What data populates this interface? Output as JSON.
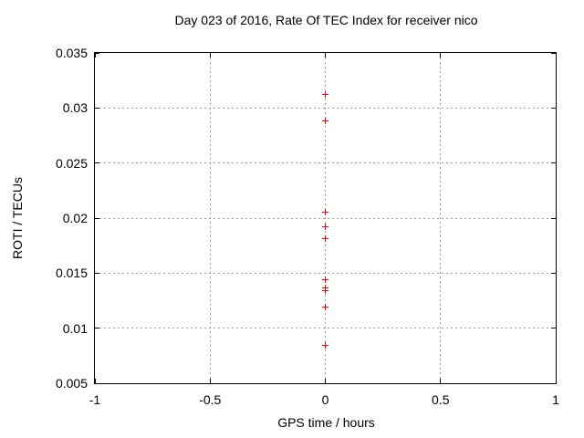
{
  "chart_data": {
    "type": "scatter",
    "title": "Day 023 of 2016, Rate Of TEC Index for receiver nico",
    "xlabel": "GPS time / hours",
    "ylabel": "ROTI / TECUs",
    "xlim": [
      -1,
      1
    ],
    "ylim": [
      0.005,
      0.035
    ],
    "x_ticks": [
      -1,
      -0.5,
      0,
      0.5,
      1
    ],
    "x_tick_labels": [
      "-1",
      "-0.5",
      "0",
      "0.5",
      "1"
    ],
    "y_ticks": [
      0.005,
      0.01,
      0.015,
      0.02,
      0.025,
      0.03,
      0.035
    ],
    "y_tick_labels": [
      "0.005",
      "0.01",
      "0.015",
      "0.02",
      "0.025",
      "0.03",
      "0.035"
    ],
    "grid": true,
    "legend_position": "none",
    "marker_style": "plus",
    "grid_color": "#9e9e9e",
    "axis_color": "#000000",
    "series": [
      {
        "name": "",
        "color": "#ff0000",
        "points": [
          {
            "x": 0,
            "y": 0.0312
          },
          {
            "x": 0,
            "y": 0.0288
          },
          {
            "x": 0,
            "y": 0.0205
          },
          {
            "x": 0,
            "y": 0.0192
          },
          {
            "x": 0,
            "y": 0.0181
          },
          {
            "x": 0,
            "y": 0.0144
          },
          {
            "x": 0,
            "y": 0.0137
          },
          {
            "x": 0,
            "y": 0.0134
          },
          {
            "x": 0,
            "y": 0.0119
          },
          {
            "x": 0,
            "y": 0.0084
          }
        ]
      }
    ]
  }
}
